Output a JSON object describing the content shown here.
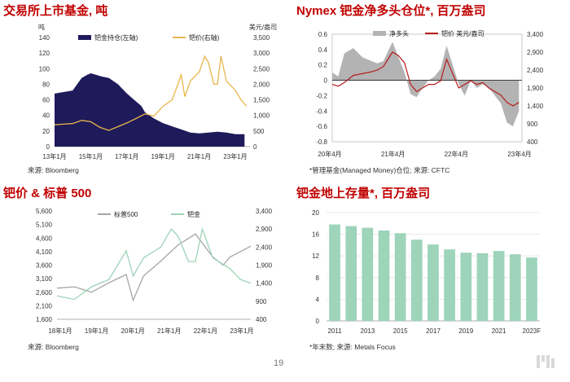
{
  "page_number": "19",
  "panels": {
    "tl": {
      "title": "交易所上市基金, 吨",
      "source": "来源: Bloomberg",
      "left_unit": "吨",
      "right_unit": "美元/盎司",
      "legend": [
        "钯金持仓(左轴)",
        "钯价(右轴)"
      ],
      "x_ticks": [
        "13年1月",
        "15年1月",
        "17年1月",
        "19年1月",
        "21年1月",
        "23年1月"
      ],
      "left_ticks": [
        "0",
        "20",
        "40",
        "60",
        "80",
        "100",
        "120",
        "140"
      ],
      "right_ticks": [
        "0",
        "500",
        "1,000",
        "1,500",
        "2,000",
        "2,500",
        "3,000",
        "3,500"
      ]
    },
    "tr": {
      "title": "Nymex 钯金净多头仓位*, 百万盎司",
      "source": "*管理基金(Managed Money)仓位; 来源: CFTC",
      "legend": [
        "净多头",
        "钯价 美元/盎司"
      ],
      "x_ticks": [
        "20年4月",
        "21年4月",
        "22年4月",
        "23年4月"
      ],
      "left_ticks": [
        "-0.8",
        "-0.6",
        "-0.4",
        "-0.2",
        "0",
        "0.2",
        "0.4",
        "0.6"
      ],
      "right_ticks": [
        "400",
        "900",
        "1,400",
        "1,900",
        "2,400",
        "2,900",
        "3,400"
      ]
    },
    "bl": {
      "title": "钯价 & 标普 500",
      "source": "来源: Bloomberg",
      "legend": [
        "标普500",
        "钯金"
      ],
      "x_ticks": [
        "18年1月",
        "19年1月",
        "20年1月",
        "21年1月",
        "22年1月",
        "23年1月"
      ],
      "left_ticks": [
        "1,600",
        "2,100",
        "2,600",
        "3,100",
        "3,600",
        "4,100",
        "4,600",
        "5,100",
        "5,600"
      ],
      "right_ticks": [
        "400",
        "900",
        "1,400",
        "1,900",
        "2,400",
        "2,900",
        "3,400"
      ]
    },
    "br": {
      "title": "钯金地上存量*, 百万盎司",
      "source": "*年末数; 来源: Metals Focus"
    }
  },
  "chart_data": [
    {
      "type": "area",
      "title": "交易所上市基金, 吨",
      "ylabel": "吨",
      "y2label": "美元/盎司",
      "xlim": [
        2013,
        2023.8
      ],
      "ylim": [
        0,
        140
      ],
      "y2lim": [
        0,
        3500
      ],
      "series": [
        {
          "name": "钯金持仓(左轴)",
          "axis": "left",
          "color": "#1f1a5a",
          "x": [
            2013.0,
            2013.5,
            2014.0,
            2014.5,
            2014.8,
            2015.0,
            2015.3,
            2015.6,
            2016.0,
            2016.5,
            2017.0,
            2017.5,
            2017.8,
            2018.0,
            2018.5,
            2019.0,
            2019.5,
            2020.0,
            2020.5,
            2021.0,
            2021.5,
            2022.0,
            2022.5,
            2023.0,
            2023.5
          ],
          "y": [
            68,
            70,
            72,
            88,
            92,
            94,
            92,
            90,
            88,
            80,
            68,
            58,
            52,
            44,
            36,
            30,
            26,
            22,
            18,
            17,
            18,
            19,
            18,
            16,
            16
          ]
        },
        {
          "name": "钯价(右轴)",
          "axis": "right",
          "color": "#e8b64a",
          "x": [
            2013.0,
            2013.5,
            2014.0,
            2014.5,
            2015.0,
            2015.5,
            2016.0,
            2016.5,
            2017.0,
            2017.5,
            2018.0,
            2018.5,
            2019.0,
            2019.5,
            2020.0,
            2020.2,
            2020.5,
            2021.0,
            2021.3,
            2021.5,
            2021.8,
            2022.0,
            2022.2,
            2022.5,
            2023.0,
            2023.3,
            2023.6
          ],
          "y": [
            700,
            720,
            740,
            840,
            800,
            620,
            520,
            640,
            760,
            900,
            1050,
            980,
            1300,
            1500,
            2300,
            1600,
            2100,
            2400,
            2900,
            2700,
            2000,
            2000,
            2900,
            2100,
            1800,
            1500,
            1300
          ]
        }
      ]
    },
    {
      "type": "area",
      "title": "Nymex 钯金净多头仓位*, 百万盎司",
      "xlim": [
        2020.25,
        2023.4
      ],
      "ylim": [
        -0.8,
        0.6
      ],
      "y2lim": [
        400,
        3400
      ],
      "series": [
        {
          "name": "净多头",
          "axis": "left",
          "color": "#b3b3b3",
          "x": [
            2020.25,
            2020.35,
            2020.45,
            2020.6,
            2020.75,
            2020.9,
            2021.0,
            2021.1,
            2021.25,
            2021.35,
            2021.45,
            2021.55,
            2021.65,
            2021.75,
            2021.85,
            2021.95,
            2022.05,
            2022.15,
            2022.25,
            2022.35,
            2022.45,
            2022.55,
            2022.65,
            2022.75,
            2022.85,
            2022.95,
            2023.05,
            2023.15,
            2023.25,
            2023.35
          ],
          "y": [
            0.1,
            0.05,
            0.35,
            0.42,
            0.3,
            0.25,
            0.22,
            0.25,
            0.5,
            0.3,
            0.1,
            -0.18,
            -0.22,
            -0.1,
            0.0,
            0.05,
            0.15,
            0.45,
            0.2,
            -0.05,
            -0.2,
            0.0,
            -0.1,
            -0.05,
            -0.1,
            -0.2,
            -0.3,
            -0.55,
            -0.6,
            -0.4
          ]
        },
        {
          "name": "钯价 美元/盎司",
          "axis": "right",
          "color": "#b81c1c",
          "x": [
            2020.25,
            2020.35,
            2020.45,
            2020.6,
            2020.75,
            2020.9,
            2021.0,
            2021.1,
            2021.25,
            2021.35,
            2021.45,
            2021.55,
            2021.65,
            2021.75,
            2021.85,
            2021.95,
            2022.05,
            2022.15,
            2022.25,
            2022.35,
            2022.45,
            2022.55,
            2022.65,
            2022.75,
            2022.85,
            2022.95,
            2023.05,
            2023.15,
            2023.25,
            2023.35
          ],
          "y": [
            2000,
            1950,
            2050,
            2250,
            2300,
            2350,
            2400,
            2500,
            2900,
            2800,
            2600,
            2000,
            1800,
            1900,
            2000,
            2000,
            2100,
            2700,
            2300,
            1900,
            2000,
            2100,
            2000,
            2050,
            1900,
            1800,
            1700,
            1500,
            1400,
            1500
          ]
        }
      ]
    },
    {
      "type": "line",
      "title": "钯价 & 标普 500",
      "xlim": [
        2018.0,
        2023.6
      ],
      "ylim": [
        1600,
        5600
      ],
      "y2lim": [
        400,
        3400
      ],
      "series": [
        {
          "name": "标普500",
          "axis": "left",
          "color": "#a6a6a6",
          "x": [
            2018.0,
            2018.5,
            2019.0,
            2019.5,
            2020.0,
            2020.2,
            2020.5,
            2021.0,
            2021.5,
            2022.0,
            2022.5,
            2022.8,
            2023.0,
            2023.3,
            2023.6
          ],
          "y": [
            2750,
            2800,
            2600,
            2950,
            3250,
            2300,
            3200,
            3750,
            4350,
            4750,
            3900,
            3600,
            3900,
            4100,
            4300
          ]
        },
        {
          "name": "钯金",
          "axis": "right",
          "color": "#9ed3b7",
          "x": [
            2018.0,
            2018.5,
            2019.0,
            2019.5,
            2020.0,
            2020.2,
            2020.5,
            2021.0,
            2021.3,
            2021.5,
            2021.8,
            2022.0,
            2022.2,
            2022.5,
            2023.0,
            2023.3,
            2023.6
          ],
          "y": [
            1050,
            950,
            1300,
            1500,
            2300,
            1600,
            2100,
            2400,
            2900,
            2700,
            2000,
            2000,
            2900,
            2100,
            1800,
            1500,
            1400
          ]
        }
      ]
    },
    {
      "type": "bar",
      "title": "钯金地上存量*, 百万盎司",
      "categories": [
        "2011",
        "2012",
        "2013",
        "2014",
        "2015",
        "2016",
        "2017",
        "2018",
        "2019",
        "2020",
        "2021",
        "2022",
        "2023F"
      ],
      "x_tick_labels": [
        "2011",
        "2013",
        "2015",
        "2017",
        "2019",
        "2021",
        "2023F"
      ],
      "values": [
        17.8,
        17.5,
        17.2,
        16.7,
        16.2,
        15.0,
        14.1,
        13.2,
        12.6,
        12.5,
        12.9,
        12.3,
        11.7
      ],
      "ylim": [
        0,
        20
      ],
      "y_ticks": [
        0,
        4,
        8,
        12,
        16,
        20
      ],
      "color": "#9dd4ba"
    }
  ]
}
